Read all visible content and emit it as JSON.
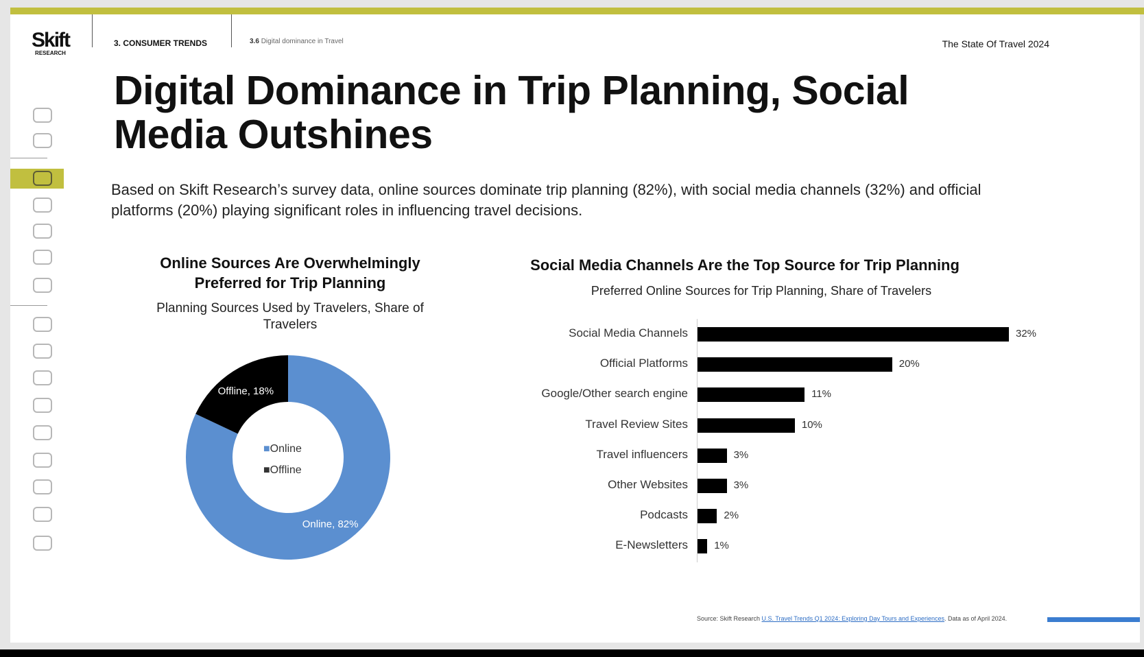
{
  "header": {
    "logo": "Skift",
    "logo_sub": "RESEARCH",
    "section": "3. CONSUMER TRENDS",
    "subsection_num": "3.6",
    "subsection": "Digital dominance in Travel",
    "report": "The State Of Travel 2024"
  },
  "title_line1": "Digital Dominance in Trip Planning, Social",
  "title_line2": "Media Outshines",
  "description": "Based on Skift Research’s survey data, online sources dominate trip planning (82%), with social media channels (32%) and official platforms (20%) playing significant roles in influencing travel decisions.",
  "sidebar": {
    "active_index": 2,
    "icons": [
      "globe-icon",
      "search-chart-icon",
      "people-icon",
      "handshake-icon",
      "plane-icon",
      "head-icon",
      "piggy-bank-icon",
      "passport-icon",
      "hotel-bell-icon",
      "home-icon",
      "money-icon",
      "family-icon",
      "calendar-icon",
      "user-icon",
      "cruise-ship-icon",
      "car-icon"
    ]
  },
  "colors": {
    "accent": "#c1bf3f",
    "online": "#5b8fd0",
    "offline": "#000000",
    "link": "#2b6cc4"
  },
  "chart_data": [
    {
      "type": "pie",
      "donut": true,
      "title": "Online Sources Are Overwhelmingly Preferred for Trip Planning",
      "subtitle": "Planning Sources Used by Travelers, Share of Travelers",
      "categories": [
        "Online",
        "Offline"
      ],
      "values": [
        82,
        18
      ],
      "data_labels": [
        "Online, 82%",
        "Offline, 18%"
      ],
      "legend": "center"
    },
    {
      "type": "bar",
      "orientation": "horizontal",
      "title": "Social Media Channels Are the Top Source for Trip Planning",
      "subtitle": "Preferred Online Sources for Trip Planning, Share of Travelers",
      "categories": [
        "Social Media Channels",
        "Official Platforms",
        "Google/Other search engine",
        "Travel Review Sites",
        "Travel influencers",
        "Other Websites",
        "Podcasts",
        "E-Newsletters"
      ],
      "values": [
        32,
        20,
        11,
        10,
        3,
        3,
        2,
        1
      ],
      "data_labels": [
        "32%",
        "20%",
        "11%",
        "10%",
        "3%",
        "3%",
        "2%",
        "1%"
      ],
      "xlim": [
        0,
        32
      ]
    }
  ],
  "footer": {
    "prefix": "Source: Skift Research ",
    "link": "U.S. Travel Trends Q1 2024: Exploring Day Tours and Experiences",
    "suffix": ". Data as of April 2024."
  }
}
